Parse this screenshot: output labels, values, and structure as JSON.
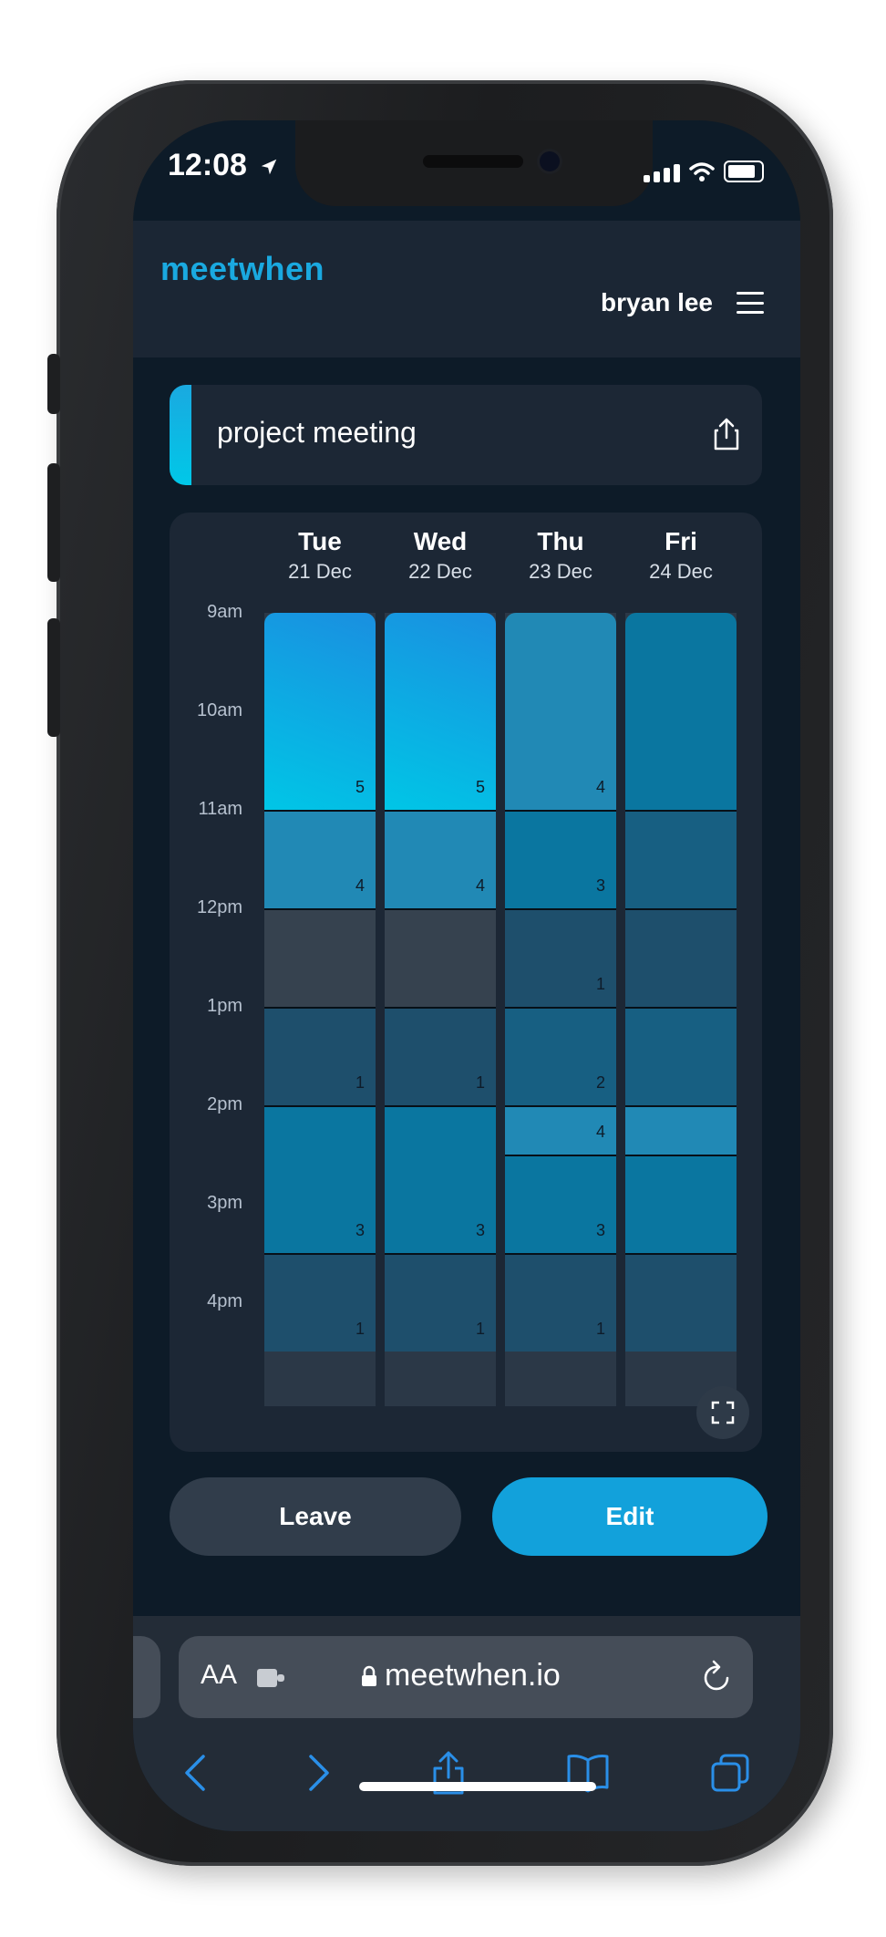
{
  "status": {
    "time": "12:08"
  },
  "app": {
    "logo": "meetwhen",
    "user": "bryan lee"
  },
  "event": {
    "title": "project meeting"
  },
  "times": [
    "9am",
    "10am",
    "11am",
    "12pm",
    "1pm",
    "2pm",
    "3pm",
    "4pm"
  ],
  "days": [
    {
      "name": "Tue",
      "date": "21 Dec",
      "blocks": [
        {
          "count": 5,
          "hours": 2.0,
          "color": "gradient"
        },
        {
          "count": 4,
          "hours": 1.0,
          "color": "#2189b5"
        },
        {
          "count": null,
          "hours": 1.0,
          "color": "#36424f"
        },
        {
          "count": 1,
          "hours": 1.0,
          "color": "#1e4f6c"
        },
        {
          "count": 3,
          "hours": 1.5,
          "color": "#0a76a0"
        },
        {
          "count": 1,
          "hours": 1.0,
          "color": "#1e4f6c"
        }
      ]
    },
    {
      "name": "Wed",
      "date": "22 Dec",
      "blocks": [
        {
          "count": 5,
          "hours": 2.0,
          "color": "gradient"
        },
        {
          "count": 4,
          "hours": 1.0,
          "color": "#2189b5"
        },
        {
          "count": null,
          "hours": 1.0,
          "color": "#36424f"
        },
        {
          "count": 1,
          "hours": 1.0,
          "color": "#1e4f6c"
        },
        {
          "count": 3,
          "hours": 1.5,
          "color": "#0a76a0"
        },
        {
          "count": 1,
          "hours": 1.0,
          "color": "#1e4f6c"
        }
      ]
    },
    {
      "name": "Thu",
      "date": "23 Dec",
      "blocks": [
        {
          "count": 4,
          "hours": 2.0,
          "color": "#2189b5"
        },
        {
          "count": 3,
          "hours": 1.0,
          "color": "#0a76a0"
        },
        {
          "count": 1,
          "hours": 1.0,
          "color": "#1e4f6c"
        },
        {
          "count": 2,
          "hours": 1.0,
          "color": "#175f82"
        },
        {
          "count": 4,
          "hours": 0.5,
          "color": "#2189b5"
        },
        {
          "count": 3,
          "hours": 1.0,
          "color": "#0a76a0"
        },
        {
          "count": 1,
          "hours": 1.0,
          "color": "#1e4f6c"
        }
      ]
    },
    {
      "name": "Fri",
      "date": "24 Dec",
      "blocks": [
        {
          "count": null,
          "hours": 2.0,
          "color": "#0a76a0"
        },
        {
          "count": null,
          "hours": 1.0,
          "color": "#175f82"
        },
        {
          "count": null,
          "hours": 1.0,
          "color": "#1e4f6c"
        },
        {
          "count": null,
          "hours": 1.0,
          "color": "#175f82"
        },
        {
          "count": null,
          "hours": 0.5,
          "color": "#2189b5"
        },
        {
          "count": null,
          "hours": 1.0,
          "color": "#0a76a0"
        },
        {
          "count": null,
          "hours": 1.0,
          "color": "#1e4f6c"
        }
      ]
    }
  ],
  "actions": {
    "leave": "Leave",
    "edit": "Edit"
  },
  "browser": {
    "text_size": "AA",
    "url": "meetwhen.io"
  },
  "colors": {
    "accent": "#12a1db",
    "background": "#0d1b28",
    "card": "#1c2735"
  }
}
